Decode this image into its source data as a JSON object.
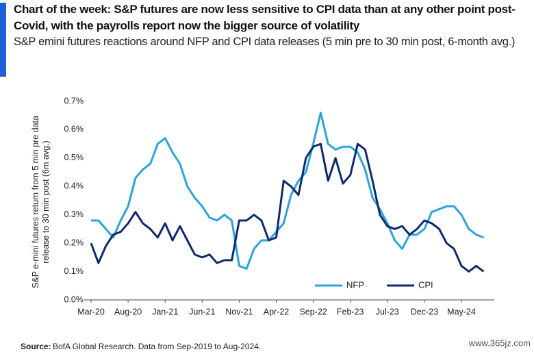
{
  "chart_data": {
    "type": "line",
    "title": "Chart of the week: S&P futures are now less sensitive to CPI data than at any other point post-Covid, with the payrolls report now the bigger source of volatility",
    "subtitle": "S&P emini futures reactions around NFP and CPI data releases (5 min pre to 30 min post, 6-month avg.)",
    "ylabel": "S&P e-mini futures return from 5 min pre data release to 30 min post (6m avg.)",
    "source_label": "Source:",
    "source": "BofA Global Research. Data from Sep-2019 to Aug-2024.",
    "watermark": "www.365jz.com",
    "x": [
      "Mar-20",
      "Apr-20",
      "May-20",
      "Jun-20",
      "Jul-20",
      "Aug-20",
      "Sep-20",
      "Oct-20",
      "Nov-20",
      "Dec-20",
      "Jan-21",
      "Feb-21",
      "Mar-21",
      "Apr-21",
      "May-21",
      "Jun-21",
      "Jul-21",
      "Aug-21",
      "Sep-21",
      "Oct-21",
      "Nov-21",
      "Dec-21",
      "Jan-22",
      "Feb-22",
      "Mar-22",
      "Apr-22",
      "May-22",
      "Jun-22",
      "Jul-22",
      "Aug-22",
      "Sep-22",
      "Oct-22",
      "Nov-22",
      "Dec-22",
      "Jan-23",
      "Feb-23",
      "Mar-23",
      "Apr-23",
      "May-23",
      "Jun-23",
      "Jul-23",
      "Aug-23",
      "Sep-23",
      "Oct-23",
      "Nov-23",
      "Dec-23",
      "Jan-24",
      "Feb-24",
      "Mar-24",
      "Apr-24",
      "May-24",
      "Jun-24",
      "Jul-24",
      "Aug-24"
    ],
    "xticks": [
      "Mar-20",
      "Aug-20",
      "Jan-21",
      "Jun-21",
      "Nov-21",
      "Apr-22",
      "Sep-22",
      "Feb-23",
      "Jul-23",
      "Dec-23",
      "May-24"
    ],
    "series": [
      {
        "name": "NFP",
        "color": "#2aa3df",
        "values": [
          0.28,
          0.28,
          0.25,
          0.22,
          0.28,
          0.33,
          0.43,
          0.46,
          0.48,
          0.55,
          0.57,
          0.52,
          0.48,
          0.4,
          0.36,
          0.33,
          0.29,
          0.28,
          0.3,
          0.28,
          0.12,
          0.11,
          0.18,
          0.21,
          0.21,
          0.24,
          0.27,
          0.37,
          0.42,
          0.45,
          0.55,
          0.66,
          0.55,
          0.53,
          0.54,
          0.54,
          0.52,
          0.46,
          0.36,
          0.32,
          0.27,
          0.21,
          0.18,
          0.23,
          0.23,
          0.25,
          0.31,
          0.32,
          0.33,
          0.33,
          0.3,
          0.25,
          0.23,
          0.22
        ]
      },
      {
        "name": "CPI",
        "color": "#0e2a6e",
        "values": [
          0.2,
          0.13,
          0.19,
          0.23,
          0.24,
          0.27,
          0.31,
          0.27,
          0.25,
          0.22,
          0.27,
          0.21,
          0.26,
          0.21,
          0.16,
          0.15,
          0.16,
          0.13,
          0.14,
          0.14,
          0.28,
          0.28,
          0.3,
          0.28,
          0.21,
          0.22,
          0.42,
          0.4,
          0.37,
          0.5,
          0.54,
          0.55,
          0.42,
          0.5,
          0.41,
          0.44,
          0.55,
          0.53,
          0.42,
          0.3,
          0.26,
          0.25,
          0.26,
          0.23,
          0.25,
          0.28,
          0.27,
          0.25,
          0.2,
          0.18,
          0.12,
          0.1,
          0.12,
          0.1
        ]
      }
    ],
    "ylim": [
      0,
      0.7
    ],
    "yticks": [
      {
        "value": 0,
        "label": "0.0%"
      },
      {
        "value": 0.1,
        "label": "0.1%"
      },
      {
        "value": 0.2,
        "label": "0.2%"
      },
      {
        "value": 0.3,
        "label": "0.3%"
      },
      {
        "value": 0.4,
        "label": "0.4%"
      },
      {
        "value": 0.5,
        "label": "0.5%"
      },
      {
        "value": 0.6,
        "label": "0.6%"
      },
      {
        "value": 0.7,
        "label": "0.7%"
      }
    ],
    "legend": "bottom-right"
  }
}
